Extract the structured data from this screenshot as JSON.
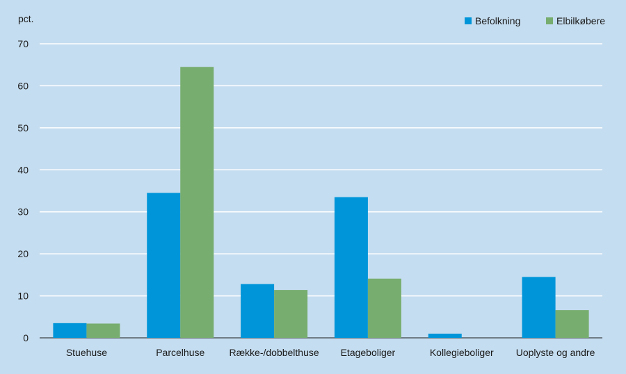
{
  "chart_data": {
    "type": "bar",
    "unit_label": "pct.",
    "categories": [
      "Stuehuse",
      "Parcelhuse",
      "Række-/dobbelthuse",
      "Etageboliger",
      "Kollegieboliger",
      "Uoplyste og andre"
    ],
    "series": [
      {
        "name": "Befolkning",
        "color": "#0095d9",
        "values": [
          3.5,
          34.5,
          12.8,
          33.5,
          1.0,
          14.5
        ]
      },
      {
        "name": "Elbilkøbere",
        "color": "#77ad6e",
        "values": [
          3.4,
          64.5,
          11.4,
          14.1,
          0.0,
          6.6
        ]
      }
    ],
    "ylim": [
      0,
      70
    ],
    "yticks": [
      0,
      10,
      20,
      30,
      40,
      50,
      60,
      70
    ],
    "grid": true,
    "legend_position": "top-right",
    "colors": {
      "background": "#c5ddf0",
      "grid": "#ffffff"
    }
  }
}
